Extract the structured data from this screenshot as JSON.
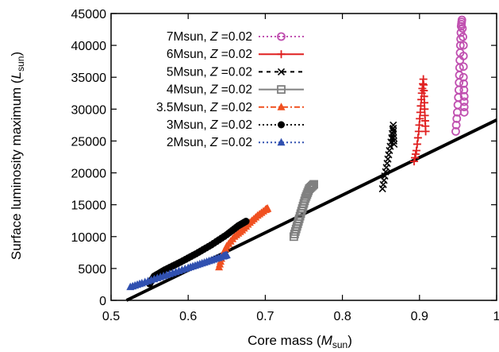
{
  "chart_data": {
    "type": "scatter",
    "title": "",
    "xlabel": {
      "text": "Core mass (",
      "sym": "M",
      "sub": "sun",
      "close": ")"
    },
    "ylabel": {
      "text": "Surface luminosity maximum (",
      "sym": "L",
      "sub": "sun",
      "close": ")"
    },
    "xlim": [
      0.5,
      1.0
    ],
    "ylim": [
      0,
      45000
    ],
    "xticks": [
      "0.5",
      "0.6",
      "0.7",
      "0.8",
      "0.9",
      "1"
    ],
    "xtick_values": [
      0.5,
      0.6,
      0.7,
      0.8,
      0.9,
      1.0
    ],
    "yticks": [
      "0",
      "5000",
      "10000",
      "15000",
      "20000",
      "25000",
      "30000",
      "35000",
      "40000",
      "45000"
    ],
    "ytick_values": [
      0,
      5000,
      10000,
      15000,
      20000,
      25000,
      30000,
      35000,
      40000,
      45000
    ],
    "grid": false,
    "legend_position": "top-left",
    "fit_line": {
      "x": [
        0.52,
        1.0
      ],
      "y": [
        0,
        28300
      ],
      "color": "#000000"
    },
    "series": [
      {
        "name": "7Msun",
        "Z": "0.02",
        "color": "#c050b0",
        "marker": "circle-open",
        "line": "dotted",
        "density": 30,
        "points": [
          [
            0.947,
            26500
          ],
          [
            0.949,
            29500
          ],
          [
            0.951,
            33000
          ],
          [
            0.952,
            36500
          ],
          [
            0.953,
            40000
          ],
          [
            0.954,
            43000
          ],
          [
            0.955,
            44000
          ],
          [
            0.957,
            40000
          ],
          [
            0.957,
            35000
          ],
          [
            0.958,
            32000
          ],
          [
            0.958,
            29500
          ]
        ]
      },
      {
        "name": "6Msun",
        "Z": "0.02",
        "color": "#e02020",
        "marker": "plus",
        "line": "solid",
        "density": 26,
        "points": [
          [
            0.893,
            21800
          ],
          [
            0.896,
            23500
          ],
          [
            0.899,
            26500
          ],
          [
            0.901,
            29500
          ],
          [
            0.903,
            32500
          ],
          [
            0.905,
            34700
          ],
          [
            0.906,
            32000
          ],
          [
            0.907,
            29000
          ],
          [
            0.908,
            26500
          ]
        ]
      },
      {
        "name": "5Msun",
        "Z": "0.02",
        "color": "#000000",
        "marker": "cross",
        "line": "dashed",
        "density": 24,
        "points": [
          [
            0.852,
            17500
          ],
          [
            0.855,
            19500
          ],
          [
            0.858,
            21500
          ],
          [
            0.861,
            23500
          ],
          [
            0.864,
            25500
          ],
          [
            0.866,
            27500
          ],
          [
            0.866,
            26000
          ],
          [
            0.867,
            24500
          ]
        ]
      },
      {
        "name": "4Msun",
        "Z": "0.02",
        "color": "#808080",
        "marker": "square-open",
        "line": "solid",
        "density": 24,
        "points": [
          [
            0.737,
            10000
          ],
          [
            0.742,
            12000
          ],
          [
            0.747,
            14000
          ],
          [
            0.752,
            16000
          ],
          [
            0.757,
            17500
          ],
          [
            0.763,
            18200
          ]
        ]
      },
      {
        "name": "3.5Msun",
        "Z": "0.02",
        "color": "#f05020",
        "marker": "triangle",
        "line": "dashdot",
        "density": 32,
        "points": [
          [
            0.64,
            5200
          ],
          [
            0.644,
            7000
          ],
          [
            0.65,
            8500
          ],
          [
            0.66,
            10000
          ],
          [
            0.67,
            11000
          ],
          [
            0.68,
            12200
          ],
          [
            0.69,
            13300
          ],
          [
            0.7,
            14200
          ],
          [
            0.703,
            14400
          ]
        ]
      },
      {
        "name": "3Msun",
        "Z": "0.02",
        "color": "#000000",
        "marker": "circle-filled",
        "line": "dotted",
        "density": 45,
        "points": [
          [
            0.55,
            2600
          ],
          [
            0.556,
            3800
          ],
          [
            0.57,
            4800
          ],
          [
            0.59,
            6000
          ],
          [
            0.61,
            7300
          ],
          [
            0.63,
            8700
          ],
          [
            0.65,
            10300
          ],
          [
            0.665,
            11700
          ],
          [
            0.675,
            12400
          ]
        ]
      },
      {
        "name": "2Msun",
        "Z": "0.02",
        "color": "#3050b0",
        "marker": "triangle",
        "line": "dotted",
        "density": 40,
        "points": [
          [
            0.525,
            2100
          ],
          [
            0.54,
            2700
          ],
          [
            0.56,
            3500
          ],
          [
            0.58,
            4300
          ],
          [
            0.6,
            5100
          ],
          [
            0.615,
            5700
          ],
          [
            0.63,
            6300
          ],
          [
            0.645,
            6900
          ],
          [
            0.65,
            7100
          ]
        ]
      }
    ]
  }
}
